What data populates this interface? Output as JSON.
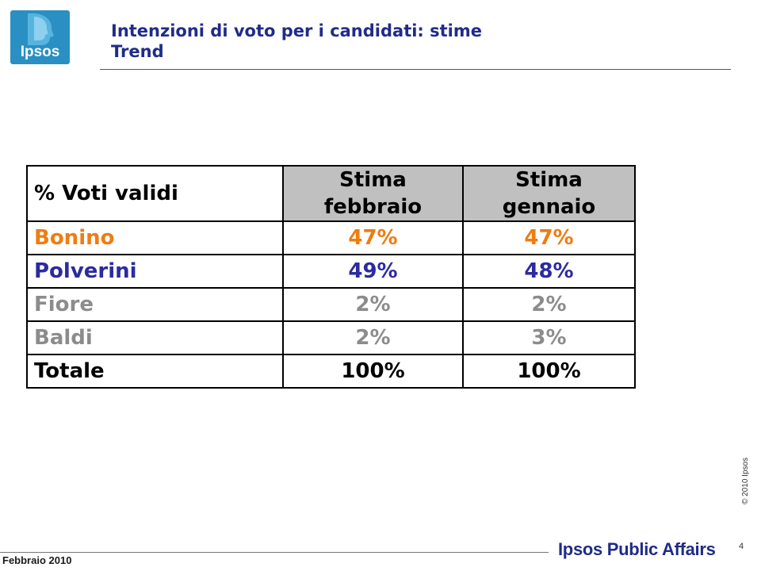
{
  "logo": {
    "text": "Ipsos"
  },
  "header": {
    "title_line1": "Intenzioni di voto per i candidati: stime",
    "title_line2": "Trend"
  },
  "table": {
    "corner": "% Voti validi",
    "columns": [
      {
        "line1": "Stima",
        "line2": "febbraio"
      },
      {
        "line1": "Stima",
        "line2": "gennaio"
      }
    ],
    "rows": [
      {
        "name": "Bonino",
        "values": [
          "47%",
          "47%"
        ],
        "color": "#f07c10"
      },
      {
        "name": "Polverini",
        "values": [
          "49%",
          "48%"
        ],
        "color": "#2b2ba0"
      },
      {
        "name": "Fiore",
        "values": [
          "2%",
          "2%"
        ],
        "color": "#8c8c8c"
      },
      {
        "name": "Baldi",
        "values": [
          "2%",
          "3%"
        ],
        "color": "#8c8c8c"
      },
      {
        "name": "Totale",
        "values": [
          "100%",
          "100%"
        ],
        "color": "#000000"
      }
    ]
  },
  "footer": {
    "copyright": "© 2010 Ipsos",
    "page_number": "4",
    "date": "Febbraio  2010",
    "brand": "Ipsos Public Affairs"
  }
}
